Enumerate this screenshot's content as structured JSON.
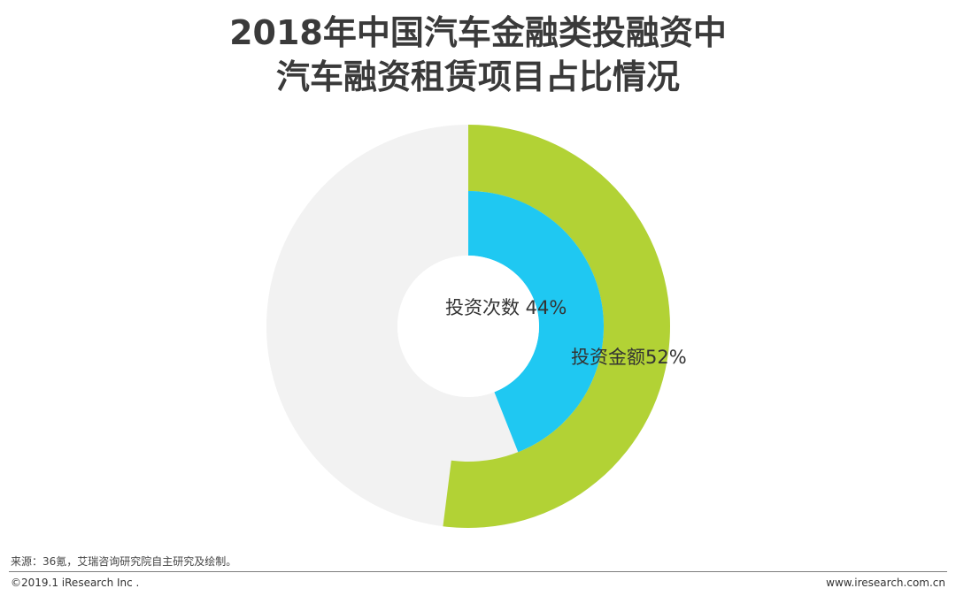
{
  "title": {
    "line1": "2018年中国汽车金融类投融资中",
    "line2": "汽车融资租赁项目占比情况"
  },
  "chart_data": {
    "type": "pie",
    "variant": "nested-donut",
    "rings": [
      {
        "name": "投资金额",
        "label": "投资金额52%",
        "value": 52,
        "color": "#b2d235",
        "remainder_color": "#f2f2f2"
      },
      {
        "name": "投资次数",
        "label": "投资次数 44%",
        "value": 44,
        "color": "#1fc8f2",
        "remainder_color": "#f2f2f2"
      }
    ]
  },
  "source": "来源：36氪，艾瑞咨询研究院自主研究及绘制。",
  "footer": {
    "copyright": "©2019.1 iResearch Inc .",
    "website": "www.iresearch.com.cn"
  }
}
